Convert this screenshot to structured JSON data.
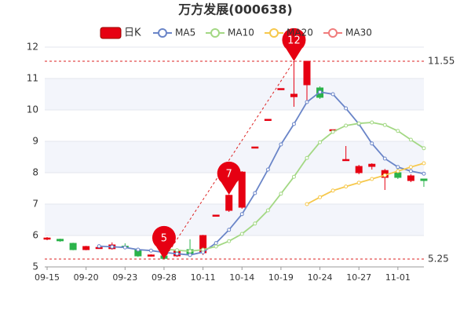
{
  "chart_data": {
    "type": "candlestick",
    "title": "万方发展(000638)",
    "categories": [
      "09-15",
      null,
      null,
      "09-20",
      null,
      null,
      "09-23",
      null,
      null,
      "09-28",
      null,
      null,
      "10-11",
      null,
      null,
      "10-14",
      null,
      null,
      "10-19",
      null,
      null,
      "10-24",
      null,
      null,
      "10-27",
      null,
      null,
      "11-01",
      null,
      null
    ],
    "candles": {
      "name": "日K",
      "up_color": "#e60012",
      "down_color": "#2bb34a",
      "open": [
        5.9,
        5.88,
        5.75,
        5.55,
        5.6,
        5.58,
        5.66,
        5.55,
        5.35,
        5.35,
        5.35,
        5.55,
        5.45,
        6.65,
        6.8,
        6.9,
        8.82,
        9.7,
        10.68,
        10.42,
        10.8,
        10.7,
        9.37,
        8.42,
        8.0,
        8.2,
        7.85,
        8.0,
        7.75,
        7.8
      ],
      "close": [
        5.92,
        5.83,
        5.55,
        5.65,
        5.62,
        5.7,
        5.63,
        5.35,
        5.38,
        5.27,
        5.5,
        5.42,
        6.0,
        6.65,
        7.28,
        8.02,
        8.82,
        9.7,
        10.68,
        10.5,
        11.55,
        10.4,
        9.37,
        8.42,
        8.2,
        8.27,
        8.07,
        7.85,
        7.9,
        7.75
      ],
      "high": [
        5.95,
        5.9,
        5.77,
        5.67,
        5.65,
        5.78,
        5.75,
        5.58,
        5.4,
        5.38,
        5.55,
        5.88,
        6.02,
        6.65,
        7.3,
        8.05,
        8.82,
        9.7,
        10.68,
        11.55,
        11.55,
        10.75,
        9.37,
        8.85,
        8.25,
        8.3,
        8.12,
        8.15,
        7.95,
        7.8
      ],
      "low": [
        5.85,
        5.8,
        5.53,
        5.53,
        5.58,
        5.55,
        5.6,
        5.32,
        5.33,
        5.25,
        5.32,
        5.4,
        5.38,
        6.65,
        6.75,
        6.85,
        8.82,
        9.7,
        10.68,
        10.1,
        10.3,
        10.35,
        9.37,
        8.42,
        7.95,
        8.1,
        7.45,
        7.8,
        7.7,
        7.55
      ]
    },
    "series": [
      {
        "name": "MA5",
        "color": "#6a85c8",
        "values": [
          null,
          null,
          null,
          null,
          5.66,
          5.64,
          5.62,
          5.55,
          5.52,
          5.46,
          5.42,
          5.38,
          5.47,
          5.76,
          6.18,
          6.68,
          7.35,
          8.1,
          8.9,
          9.55,
          10.25,
          10.57,
          10.5,
          10.05,
          9.55,
          8.93,
          8.45,
          8.18,
          8.05,
          7.97
        ]
      },
      {
        "name": "MA10",
        "color": "#a3d884",
        "values": [
          null,
          null,
          null,
          null,
          null,
          null,
          null,
          null,
          null,
          5.57,
          5.53,
          5.5,
          5.55,
          5.65,
          5.82,
          6.05,
          6.38,
          6.8,
          7.33,
          7.87,
          8.47,
          8.97,
          9.3,
          9.5,
          9.57,
          9.6,
          9.52,
          9.33,
          9.05,
          8.78
        ]
      },
      {
        "name": "MA20",
        "color": "#f6c84c",
        "values": [
          null,
          null,
          null,
          null,
          null,
          null,
          null,
          null,
          null,
          null,
          null,
          null,
          null,
          null,
          null,
          null,
          null,
          null,
          null,
          null,
          7.0,
          7.22,
          7.43,
          7.56,
          7.68,
          7.8,
          7.92,
          8.05,
          8.18,
          8.3
        ]
      },
      {
        "name": "MA30",
        "color": "#f07c7c",
        "values": [
          null,
          null,
          null,
          null,
          null,
          null,
          null,
          null,
          null,
          null,
          null,
          null,
          null,
          null,
          null,
          null,
          null,
          null,
          null,
          null,
          null,
          null,
          null,
          null,
          null,
          null,
          null,
          null,
          null,
          null
        ]
      }
    ],
    "ylim": [
      5,
      12
    ],
    "yticks": [
      5,
      6,
      7,
      8,
      9,
      10,
      11,
      12
    ],
    "hlines": [
      11.55,
      5.25
    ],
    "annotations": [
      {
        "text": "5",
        "index": 9,
        "value": 5.25
      },
      {
        "text": "7",
        "index": 14,
        "value": 7.3
      },
      {
        "text": "12",
        "index": 19,
        "value": 11.55
      }
    ],
    "grid": true
  }
}
